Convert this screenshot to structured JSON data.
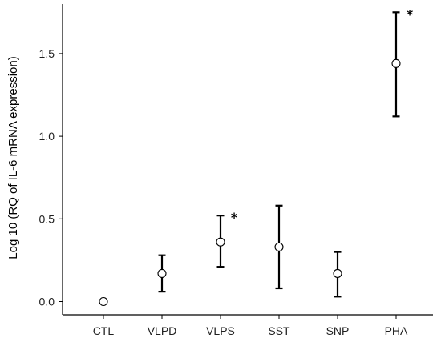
{
  "chart_data": {
    "type": "scatter",
    "categories": [
      "CTL",
      "VLPD",
      "VLPS",
      "SST",
      "SNP",
      "PHA"
    ],
    "series": [
      {
        "values": [
          0.0,
          0.17,
          0.36,
          0.33,
          0.17,
          1.44
        ],
        "error_low": [
          0.0,
          0.06,
          0.21,
          0.08,
          0.03,
          1.12
        ],
        "error_high": [
          0.0,
          0.28,
          0.52,
          0.58,
          0.3,
          1.75
        ]
      }
    ],
    "xlabel": "",
    "ylabel": "Log 10 (RQ of IL-6 mRNA expression)",
    "ylim": [
      -0.08,
      1.8
    ],
    "yticks": [
      0.0,
      0.5,
      1.0,
      1.5
    ],
    "ytick_labels": [
      "0.0",
      "0.5",
      "1.0",
      "1.5"
    ],
    "significance": [
      {
        "category": "VLPS",
        "label": "*"
      },
      {
        "category": "PHA",
        "label": "*"
      }
    ],
    "grid": false,
    "legend": "none",
    "marker": "open-circle",
    "colors": {
      "marker_fill": "#ffffff",
      "marker_edge": "#000000",
      "errorbar": "#000000"
    }
  }
}
